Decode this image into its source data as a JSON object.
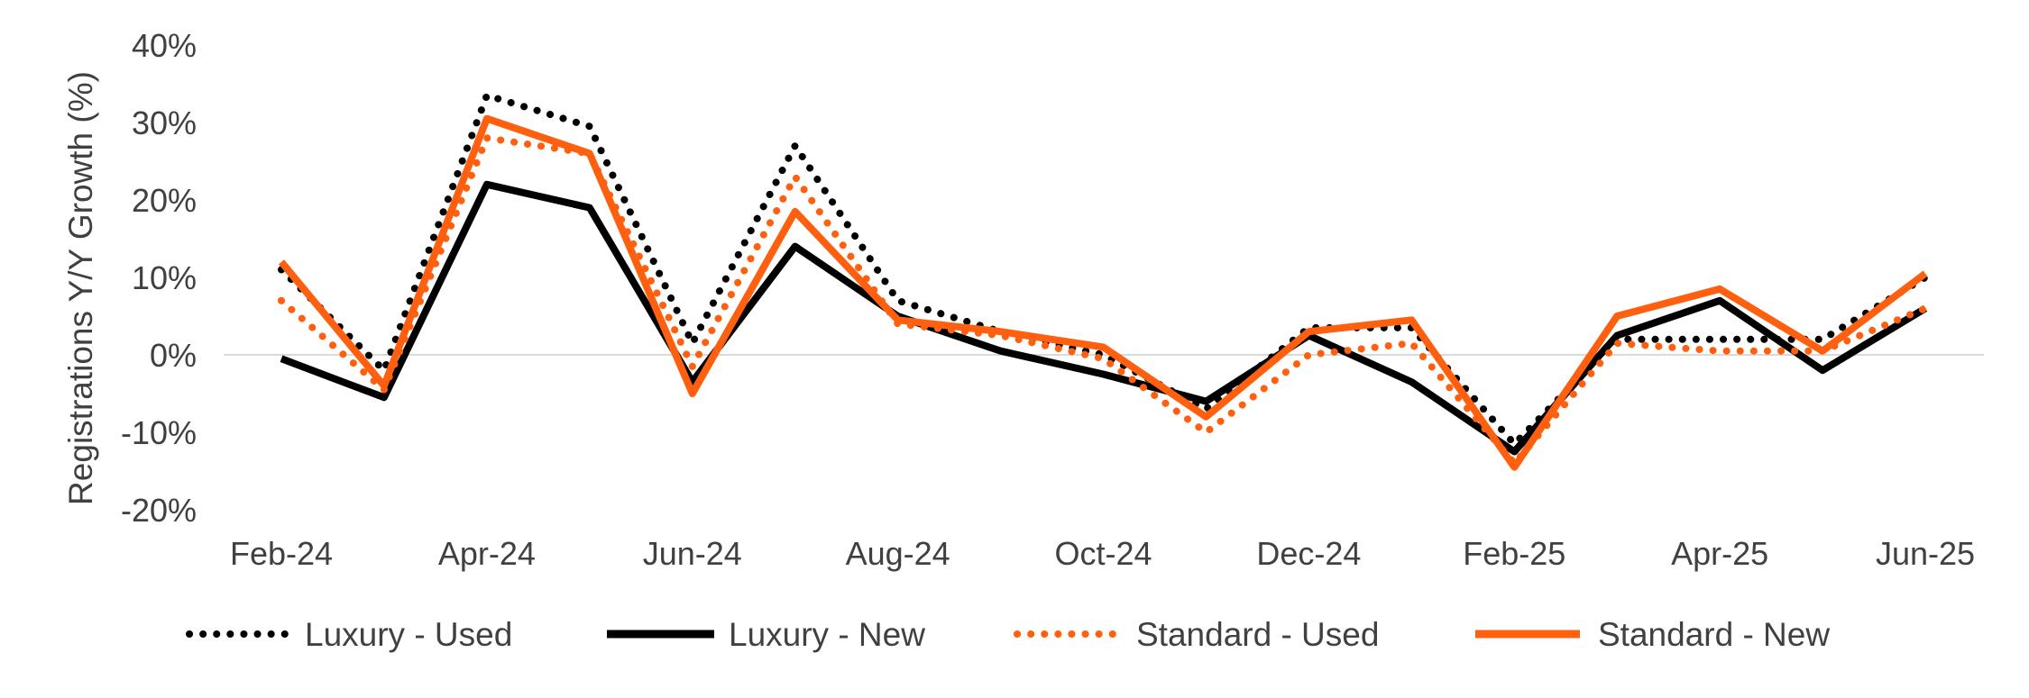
{
  "chart_data": {
    "type": "line",
    "title": "",
    "ylabel": "Registrations Y/Y Growth (%)",
    "xlabel": "",
    "x": [
      "Feb-24",
      "Mar-24",
      "Apr-24",
      "May-24",
      "Jun-24",
      "Jul-24",
      "Aug-24",
      "Sep-24",
      "Oct-24",
      "Nov-24",
      "Dec-24",
      "Jan-25",
      "Feb-25",
      "Mar-25",
      "Apr-25",
      "May-25",
      "Jun-25"
    ],
    "x_tick_labels": [
      "Feb-24",
      "Apr-24",
      "Jun-24",
      "Aug-24",
      "Oct-24",
      "Dec-24",
      "Feb-25",
      "Apr-25",
      "Jun-25"
    ],
    "y_ticks": [
      -20,
      -10,
      0,
      10,
      20,
      30,
      40
    ],
    "y_tick_labels": [
      "-20%",
      "-10%",
      "0%",
      "10%",
      "20%",
      "30%",
      "40%"
    ],
    "ylim": [
      -20,
      40
    ],
    "zero_line": true,
    "grid": false,
    "legend_position": "bottom",
    "series": [
      {
        "name": "Luxury - Used",
        "color": "#000000",
        "style": "dotted",
        "values": [
          11,
          -2,
          33.5,
          29.5,
          1.5,
          27,
          7,
          3,
          0,
          -7,
          3.5,
          3.5,
          -11.5,
          2,
          2,
          2,
          10
        ]
      },
      {
        "name": "Luxury - New",
        "color": "#000000",
        "style": "solid",
        "values": [
          -0.5,
          -5.5,
          22,
          19,
          -3.5,
          14,
          5,
          0.5,
          -2.5,
          -6,
          2.5,
          -3.5,
          -12.5,
          2.5,
          7,
          -2,
          6
        ]
      },
      {
        "name": "Standard - Used",
        "color": "#FF6010",
        "style": "dotted",
        "values": [
          7,
          -4.5,
          28,
          26,
          -1.5,
          23,
          4,
          2.5,
          -0.5,
          -10,
          0,
          1.5,
          -14,
          1.5,
          0.5,
          0.5,
          6
        ]
      },
      {
        "name": "Standard - New",
        "color": "#FF6010",
        "style": "solid",
        "values": [
          12,
          -4,
          30.5,
          26,
          -5,
          18.5,
          4.5,
          3,
          1,
          -8,
          3,
          4.5,
          -14.5,
          5,
          8.5,
          0.5,
          10.5
        ]
      }
    ]
  }
}
